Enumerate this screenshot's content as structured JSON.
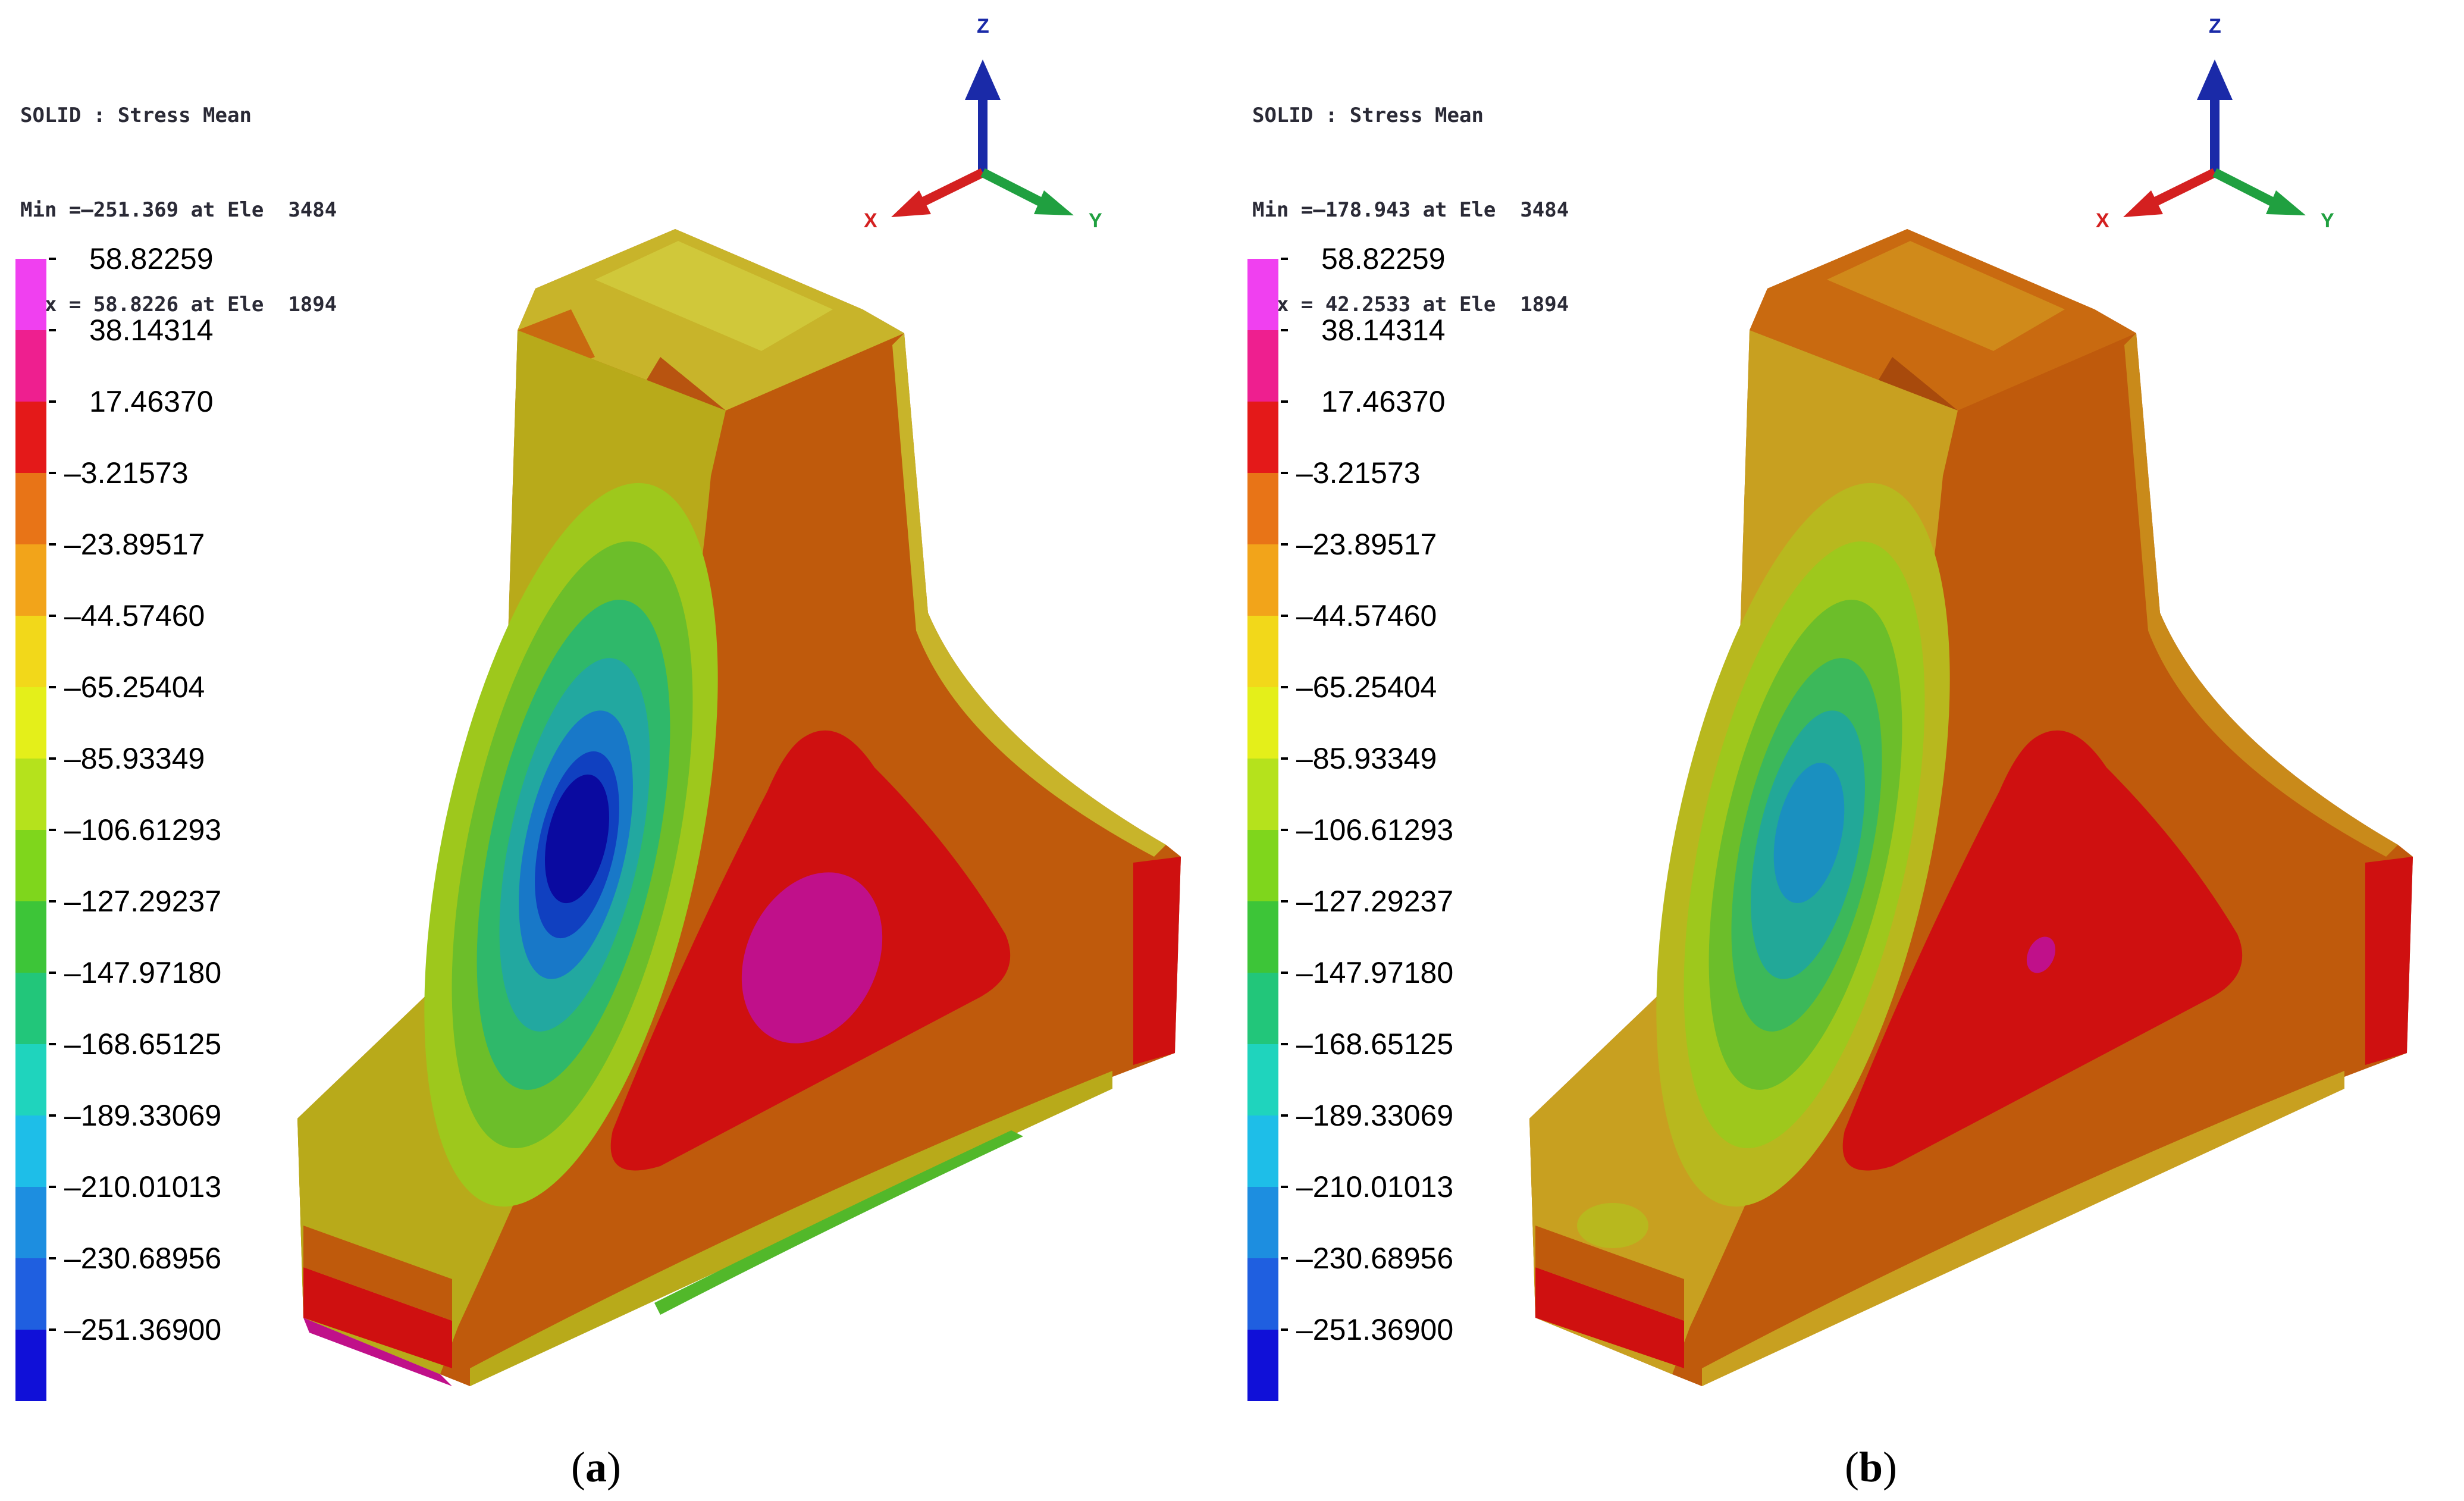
{
  "panels": [
    {
      "id": "a",
      "header": {
        "title": "SOLID : Stress Mean",
        "min_line": "Min =–251.369 at Ele  3484",
        "max_line": "Max = 58.8226 at Ele  1894"
      },
      "caption": "a"
    },
    {
      "id": "b",
      "header": {
        "title": "SOLID : Stress Mean",
        "min_line": "Min =–178.943 at Ele  3484",
        "max_line": "Max = 42.2533 at Ele  1894"
      },
      "caption": "b"
    }
  ],
  "colorbar": {
    "labels": [
      "58.82259",
      "38.14314",
      "17.46370",
      "–3.21573",
      "–23.89517",
      "–44.57460",
      "–65.25404",
      "–85.93349",
      "–106.61293",
      "–127.29237",
      "–147.97180",
      "–168.65125",
      "–189.33069",
      "–210.01013",
      "–230.68956",
      "–251.36900"
    ],
    "colors": [
      "#f040f0",
      "#ee1f8f",
      "#e41919",
      "#e87417",
      "#f2a41a",
      "#f2d81a",
      "#e4ef1a",
      "#b5e21c",
      "#7fd61c",
      "#3dc538",
      "#22c67a",
      "#1fd4bd",
      "#1ebee8",
      "#1d8ee0",
      "#1f5fe0",
      "#1010d8"
    ]
  },
  "axes": {
    "z": "Z",
    "x": "X",
    "y": "Y",
    "colors": {
      "z": "#1a2aa8",
      "x": "#d42020",
      "y": "#20a040"
    }
  },
  "shape_colors": {
    "orange": "#bf5a0c",
    "orange_mid": "#c96a10",
    "red": "#cf1010",
    "magenta": "#c0108a",
    "yellow": "#c8c020",
    "olive": "#b8aa1a",
    "green": "#52b82a",
    "teal": "#22a8a0",
    "blue": "#1878c8",
    "deepblue": "#0a0aa0"
  }
}
